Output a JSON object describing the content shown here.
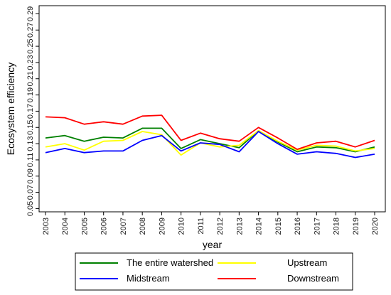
{
  "chart_data": {
    "type": "line",
    "title": "",
    "xlabel": "year",
    "ylabel": "Ecosystem efficiency",
    "x": [
      "2003",
      "2004",
      "2005",
      "2006",
      "2007",
      "2008",
      "2009",
      "2010",
      "2011",
      "2012",
      "2013",
      "2014",
      "2015",
      "2016",
      "2017",
      "2018",
      "2019",
      "2020"
    ],
    "y_ticks": [
      "0.05",
      "0.07",
      "0.09",
      "0.11",
      "0.13",
      "0.15",
      "0.17",
      "0.19",
      "0.21",
      "0.23",
      "0.25",
      "0.27",
      "0.29"
    ],
    "ylim": [
      0.046,
      0.3
    ],
    "grid": false,
    "legend_position": "bottom",
    "series": [
      {
        "name": "The entire watershed",
        "color": "#008000",
        "values": [
          0.137,
          0.14,
          0.133,
          0.138,
          0.137,
          0.149,
          0.149,
          0.124,
          0.135,
          0.13,
          0.125,
          0.146,
          0.132,
          0.12,
          0.126,
          0.125,
          0.12,
          0.126
        ]
      },
      {
        "name": "Upstream",
        "color": "#ffff00",
        "values": [
          0.126,
          0.13,
          0.122,
          0.133,
          0.134,
          0.145,
          0.141,
          0.116,
          0.131,
          0.126,
          0.128,
          0.146,
          0.133,
          0.122,
          0.128,
          0.127,
          0.121,
          0.124
        ]
      },
      {
        "name": "Midstream",
        "color": "#0000ff",
        "values": [
          0.119,
          0.124,
          0.119,
          0.121,
          0.121,
          0.134,
          0.14,
          0.121,
          0.131,
          0.129,
          0.12,
          0.145,
          0.13,
          0.117,
          0.12,
          0.118,
          0.113,
          0.117
        ]
      },
      {
        "name": "Downstream",
        "color": "#ff0000",
        "values": [
          0.163,
          0.162,
          0.154,
          0.157,
          0.154,
          0.164,
          0.165,
          0.134,
          0.143,
          0.136,
          0.133,
          0.15,
          0.137,
          0.123,
          0.131,
          0.133,
          0.126,
          0.134
        ]
      }
    ]
  }
}
